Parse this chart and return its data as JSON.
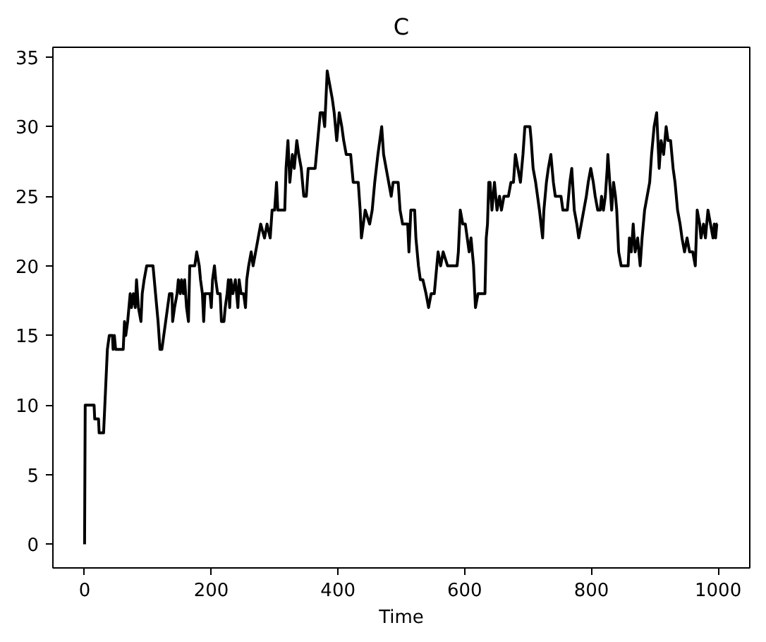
{
  "chart_data": {
    "type": "line",
    "title": "C",
    "xlabel": "Time",
    "x": [
      0,
      1,
      15,
      16,
      22,
      23,
      30,
      33,
      36,
      39,
      44,
      45,
      47,
      49,
      61,
      63,
      65,
      68,
      72,
      74,
      77,
      80,
      82,
      85,
      89,
      91,
      94,
      98,
      108,
      112,
      116,
      119,
      122,
      125,
      128,
      131,
      134,
      138,
      139,
      142,
      146,
      148,
      151,
      153,
      156,
      158,
      161,
      164,
      166,
      174,
      177,
      181,
      183,
      186,
      188,
      190,
      198,
      200,
      202,
      205,
      207,
      210,
      214,
      216,
      220,
      222,
      225,
      227,
      229,
      231,
      234,
      238,
      242,
      244,
      247,
      251,
      254,
      256,
      259,
      263,
      266,
      270,
      274,
      278,
      284,
      288,
      293,
      296,
      300,
      303,
      305,
      316,
      318,
      321,
      324,
      328,
      331,
      335,
      338,
      342,
      346,
      350,
      353,
      364,
      368,
      372,
      376,
      379,
      383,
      387,
      391,
      394,
      398,
      402,
      406,
      409,
      413,
      420,
      424,
      432,
      435,
      437,
      440,
      443,
      450,
      454,
      458,
      463,
      469,
      472,
      476,
      480,
      484,
      487,
      495,
      498,
      502,
      510,
      512,
      515,
      521,
      523,
      527,
      530,
      534,
      539,
      543,
      547,
      552,
      556,
      558,
      562,
      566,
      573,
      588,
      590,
      593,
      597,
      601,
      604,
      607,
      610,
      614,
      617,
      621,
      625,
      632,
      634,
      636,
      638,
      640,
      643,
      647,
      651,
      655,
      658,
      662,
      669,
      673,
      677,
      680,
      684,
      688,
      692,
      695,
      703,
      705,
      708,
      712,
      715,
      718,
      723,
      725,
      729,
      732,
      736,
      740,
      743,
      752,
      755,
      762,
      766,
      769,
      773,
      777,
      780,
      784,
      788,
      792,
      795,
      799,
      803,
      806,
      810,
      814,
      816,
      819,
      822,
      825,
      826,
      829,
      832,
      835,
      838,
      840,
      843,
      847,
      858,
      860,
      863,
      866,
      869,
      873,
      877,
      880,
      884,
      888,
      892,
      895,
      899,
      903,
      905,
      907,
      910,
      914,
      918,
      921,
      925,
      929,
      932,
      936,
      940,
      943,
      947,
      951,
      955,
      960,
      964,
      967,
      971,
      973,
      977,
      980,
      984,
      988,
      992,
      994,
      996,
      998,
      999
    ],
    "series": [
      {
        "color": "#000000",
        "values": [
          0,
          10,
          10,
          9,
          9,
          8,
          8,
          11,
          14,
          15,
          15,
          14,
          15,
          14,
          14,
          16,
          15,
          16,
          18,
          17,
          18,
          17,
          19,
          17,
          16,
          18,
          19,
          20,
          20,
          18,
          16,
          14,
          14,
          15,
          16,
          17,
          18,
          18,
          16,
          17,
          18,
          19,
          18,
          19,
          18,
          19,
          17,
          16,
          20,
          20,
          21,
          20,
          19,
          18,
          16,
          18,
          18,
          17,
          19,
          20,
          19,
          18,
          18,
          16,
          16,
          17,
          18,
          19,
          17,
          19,
          18,
          19,
          17,
          19,
          18,
          18,
          17,
          19,
          20,
          21,
          20,
          21,
          22,
          23,
          22,
          23,
          22,
          24,
          24,
          26,
          24,
          24,
          27,
          29,
          26,
          28,
          27,
          29,
          28,
          27,
          25,
          25,
          27,
          27,
          29,
          31,
          31,
          30,
          34,
          33,
          32,
          31,
          29,
          31,
          30,
          29,
          28,
          28,
          26,
          26,
          24,
          22,
          23,
          24,
          23,
          24,
          26,
          28,
          30,
          28,
          27,
          26,
          25,
          26,
          26,
          24,
          23,
          23,
          21,
          24,
          24,
          22,
          20,
          19,
          19,
          18,
          17,
          18,
          18,
          20,
          21,
          20,
          21,
          20,
          20,
          21,
          24,
          23,
          23,
          22,
          21,
          22,
          20,
          17,
          18,
          18,
          18,
          22,
          23,
          26,
          26,
          24,
          26,
          24,
          25,
          24,
          25,
          25,
          26,
          26,
          28,
          27,
          26,
          28,
          30,
          30,
          29,
          27,
          26,
          25,
          24,
          22,
          24,
          26,
          27,
          28,
          26,
          25,
          25,
          24,
          24,
          26,
          27,
          24,
          23,
          22,
          23,
          24,
          25,
          26,
          27,
          26,
          25,
          24,
          24,
          25,
          24,
          25,
          27,
          28,
          26,
          24,
          26,
          25,
          24,
          21,
          20,
          20,
          22,
          21,
          23,
          21,
          22,
          20,
          22,
          24,
          25,
          26,
          28,
          30,
          31,
          29,
          27,
          29,
          28,
          30,
          29,
          29,
          27,
          26,
          24,
          23,
          22,
          21,
          22,
          21,
          21,
          20,
          24,
          23,
          22,
          23,
          22,
          24,
          23,
          22,
          23,
          22,
          23,
          23
        ]
      }
    ],
    "xlim": [
      -50,
      1050
    ],
    "ylim": [
      -1.7,
      35.7
    ],
    "xticks": [
      0,
      200,
      400,
      600,
      800,
      1000
    ],
    "yticks": [
      0,
      5,
      10,
      15,
      20,
      25,
      30,
      35
    ],
    "grid": false
  }
}
